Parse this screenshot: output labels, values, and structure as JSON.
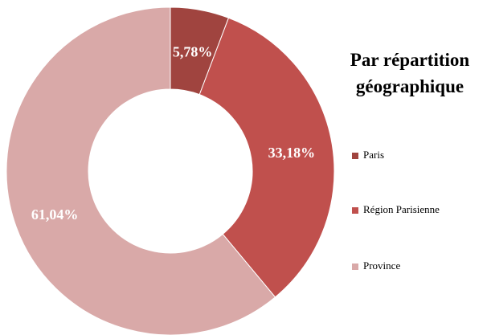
{
  "chart_data": {
    "type": "donut",
    "title": "Par répartition géographique",
    "categories": [
      "Paris",
      "Région Parisienne",
      "Province"
    ],
    "values": [
      5.78,
      33.18,
      61.04
    ],
    "value_labels": [
      "5,78%",
      "33,18%",
      "61,04%"
    ],
    "colors": [
      "#a0443f",
      "#c0504d",
      "#d9a9a8"
    ],
    "legend": "right"
  }
}
